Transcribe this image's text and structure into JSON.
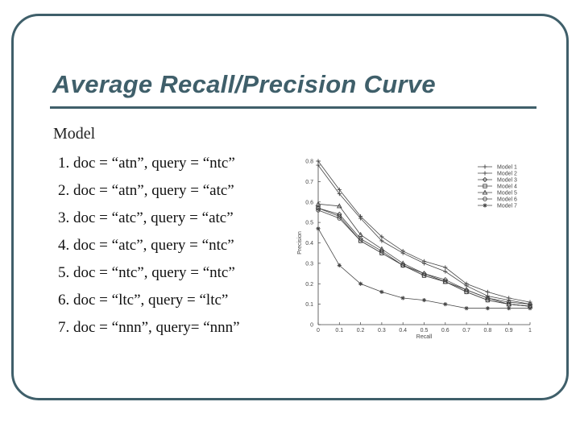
{
  "slide": {
    "title": "Average Recall/Precision Curve",
    "model_heading": "Model",
    "models": [
      "1. doc = “atn”, query = “ntc”",
      "2. doc = “atn”, query = “atc”",
      "3. doc = “atc”, query = “atc”",
      "4. doc = “atc”, query = “ntc”",
      "5. doc = “ntc”, query = “ntc”",
      "6. doc = “ltc”, query = “ltc”",
      "7. doc = “nnn”, query= “nnn”"
    ]
  },
  "colors": {
    "accent": "#3f5f6a",
    "plot": "#444444"
  },
  "chart_data": {
    "type": "line",
    "xlabel": "Recall",
    "ylabel": "Precision",
    "xlim": [
      0,
      1
    ],
    "ylim": [
      0,
      0.8
    ],
    "x_ticks": [
      "0",
      "0.1",
      "0.2",
      "0.3",
      "0.4",
      "0.5",
      "0.6",
      "0.7",
      "0.8",
      "0.9",
      "1"
    ],
    "y_ticks": [
      "0",
      "0.1",
      "0.2",
      "0.3",
      "0.4",
      "0.5",
      "0.6",
      "0.7",
      "0.8"
    ],
    "grid": false,
    "legend_position": "top-right",
    "x": [
      0,
      0.1,
      0.2,
      0.3,
      0.4,
      0.5,
      0.6,
      0.7,
      0.8,
      0.9,
      1.0
    ],
    "series": [
      {
        "name": "Model 1",
        "marker": "plus",
        "values": [
          0.8,
          0.66,
          0.53,
          0.43,
          0.36,
          0.31,
          0.28,
          0.2,
          0.16,
          0.13,
          0.11
        ]
      },
      {
        "name": "Model 2",
        "marker": "plus",
        "values": [
          0.78,
          0.64,
          0.52,
          0.41,
          0.35,
          0.3,
          0.26,
          0.19,
          0.14,
          0.12,
          0.1
        ]
      },
      {
        "name": "Model 3",
        "marker": "diamond",
        "values": [
          0.57,
          0.54,
          0.42,
          0.36,
          0.29,
          0.25,
          0.22,
          0.17,
          0.13,
          0.11,
          0.1
        ]
      },
      {
        "name": "Model 4",
        "marker": "square",
        "values": [
          0.57,
          0.53,
          0.41,
          0.35,
          0.29,
          0.24,
          0.21,
          0.16,
          0.12,
          0.1,
          0.09
        ]
      },
      {
        "name": "Model 5",
        "marker": "triangle",
        "values": [
          0.59,
          0.58,
          0.44,
          0.37,
          0.3,
          0.25,
          0.21,
          0.17,
          0.13,
          0.1,
          0.09
        ]
      },
      {
        "name": "Model 6",
        "marker": "circle",
        "values": [
          0.56,
          0.52,
          0.41,
          0.35,
          0.29,
          0.24,
          0.21,
          0.16,
          0.12,
          0.1,
          0.09
        ]
      },
      {
        "name": "Model 7",
        "marker": "star",
        "values": [
          0.47,
          0.29,
          0.2,
          0.16,
          0.13,
          0.12,
          0.1,
          0.08,
          0.08,
          0.08,
          0.08
        ]
      }
    ]
  }
}
